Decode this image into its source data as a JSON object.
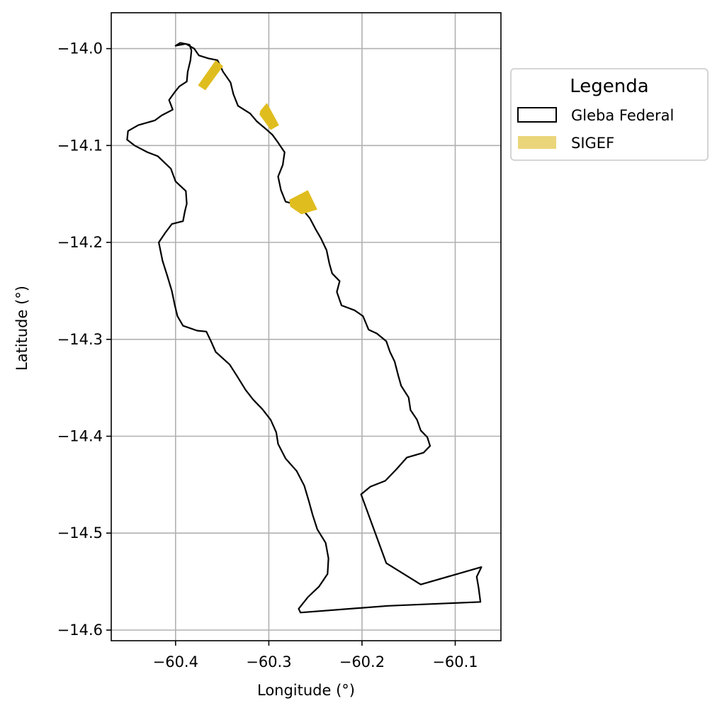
{
  "chart_data": {
    "type": "map",
    "xlabel": "Longitude (°)",
    "ylabel": "Latitude (°)",
    "xlim": [
      -60.469,
      -60.051
    ],
    "ylim": [
      -14.611,
      -13.963
    ],
    "xticks": [
      -60.4,
      -60.3,
      -60.2,
      -60.1
    ],
    "xtick_labels": [
      "−60.4",
      "−60.3",
      "−60.2",
      "−60.1"
    ],
    "yticks": [
      -14.0,
      -14.1,
      -14.2,
      -14.3,
      -14.4,
      -14.5,
      -14.6
    ],
    "ytick_labels": [
      "−14.0",
      "−14.1",
      "−14.2",
      "−14.3",
      "−14.4",
      "−14.5",
      "−14.6"
    ],
    "grid": true,
    "legend": {
      "title": "Legenda",
      "placement": "outside-right-top",
      "entries": [
        "Gleba Federal",
        "SIGEF"
      ]
    },
    "colors": {
      "outline": "#000000",
      "sigef": "#e0bd1f",
      "sigef_legend": "#ead57a",
      "grid": "#b0b0b0"
    },
    "layers": [
      {
        "name": "Gleba Federal",
        "kind": "polygon-outline",
        "coordinates": [
          [
            -60.4,
            -13.997
          ],
          [
            -60.395,
            -13.994
          ],
          [
            -60.385,
            -13.996
          ],
          [
            -60.383,
            -14.002
          ],
          [
            -60.384,
            -14.012
          ],
          [
            -60.387,
            -14.024
          ],
          [
            -60.388,
            -14.034
          ],
          [
            -60.396,
            -14.039
          ],
          [
            -60.401,
            -14.045
          ],
          [
            -60.407,
            -14.053
          ],
          [
            -60.403,
            -14.063
          ],
          [
            -60.415,
            -14.069
          ],
          [
            -60.422,
            -14.074
          ],
          [
            -60.44,
            -14.079
          ],
          [
            -60.451,
            -14.085
          ],
          [
            -60.452,
            -14.094
          ],
          [
            -60.444,
            -14.1
          ],
          [
            -60.43,
            -14.107
          ],
          [
            -60.419,
            -14.111
          ],
          [
            -60.405,
            -14.124
          ],
          [
            -60.4,
            -14.137
          ],
          [
            -60.389,
            -14.147
          ],
          [
            -60.388,
            -14.16
          ],
          [
            -60.39,
            -14.168
          ],
          [
            -60.392,
            -14.178
          ],
          [
            -60.404,
            -14.181
          ],
          [
            -60.411,
            -14.19
          ],
          [
            -60.418,
            -14.2
          ],
          [
            -60.414,
            -14.219
          ],
          [
            -60.409,
            -14.234
          ],
          [
            -60.404,
            -14.25
          ],
          [
            -60.401,
            -14.264
          ],
          [
            -60.398,
            -14.276
          ],
          [
            -60.392,
            -14.286
          ],
          [
            -60.377,
            -14.291
          ],
          [
            -60.367,
            -14.292
          ],
          [
            -60.362,
            -14.302
          ],
          [
            -60.357,
            -14.313
          ],
          [
            -60.342,
            -14.326
          ],
          [
            -60.334,
            -14.338
          ],
          [
            -60.325,
            -14.352
          ],
          [
            -60.317,
            -14.362
          ],
          [
            -60.307,
            -14.372
          ],
          [
            -60.298,
            -14.383
          ],
          [
            -60.292,
            -14.396
          ],
          [
            -60.29,
            -14.408
          ],
          [
            -60.282,
            -14.423
          ],
          [
            -60.27,
            -14.436
          ],
          [
            -60.262,
            -14.451
          ],
          [
            -60.257,
            -14.467
          ],
          [
            -60.253,
            -14.481
          ],
          [
            -60.248,
            -14.496
          ],
          [
            -60.239,
            -14.51
          ],
          [
            -60.236,
            -14.526
          ],
          [
            -60.237,
            -14.542
          ],
          [
            -60.246,
            -14.555
          ],
          [
            -60.258,
            -14.566
          ],
          [
            -60.268,
            -14.578
          ],
          [
            -60.266,
            -14.582
          ],
          [
            -60.172,
            -14.575
          ],
          [
            -60.073,
            -14.571
          ],
          [
            -60.075,
            -14.556
          ],
          [
            -60.077,
            -14.545
          ],
          [
            -60.072,
            -14.535
          ],
          [
            -60.137,
            -14.553
          ],
          [
            -60.174,
            -14.531
          ],
          [
            -60.201,
            -14.46
          ],
          [
            -60.191,
            -14.452
          ],
          [
            -60.175,
            -14.446
          ],
          [
            -60.163,
            -14.434
          ],
          [
            -60.152,
            -14.422
          ],
          [
            -60.134,
            -14.417
          ],
          [
            -60.127,
            -14.41
          ],
          [
            -60.13,
            -14.401
          ],
          [
            -60.137,
            -14.394
          ],
          [
            -60.141,
            -14.383
          ],
          [
            -60.148,
            -14.373
          ],
          [
            -60.15,
            -14.36
          ],
          [
            -60.158,
            -14.348
          ],
          [
            -60.161,
            -14.338
          ],
          [
            -60.165,
            -14.323
          ],
          [
            -60.17,
            -14.313
          ],
          [
            -60.174,
            -14.302
          ],
          [
            -60.184,
            -14.294
          ],
          [
            -60.193,
            -14.29
          ],
          [
            -60.199,
            -14.276
          ],
          [
            -60.208,
            -14.27
          ],
          [
            -60.222,
            -14.265
          ],
          [
            -60.227,
            -14.251
          ],
          [
            -60.224,
            -14.24
          ],
          [
            -60.232,
            -14.232
          ],
          [
            -60.235,
            -14.222
          ],
          [
            -60.238,
            -14.208
          ],
          [
            -60.244,
            -14.196
          ],
          [
            -60.25,
            -14.186
          ],
          [
            -60.256,
            -14.175
          ],
          [
            -60.262,
            -14.168
          ],
          [
            -60.27,
            -14.161
          ],
          [
            -60.282,
            -14.158
          ],
          [
            -60.287,
            -14.146
          ],
          [
            -60.29,
            -14.132
          ],
          [
            -60.285,
            -14.12
          ],
          [
            -60.283,
            -14.107
          ],
          [
            -60.29,
            -14.097
          ],
          [
            -60.296,
            -14.089
          ],
          [
            -60.303,
            -14.083
          ],
          [
            -60.313,
            -14.075
          ],
          [
            -60.32,
            -14.067
          ],
          [
            -60.333,
            -14.059
          ],
          [
            -60.338,
            -14.047
          ],
          [
            -60.341,
            -14.035
          ],
          [
            -60.349,
            -14.024
          ],
          [
            -60.355,
            -14.012
          ],
          [
            -60.365,
            -14.01
          ],
          [
            -60.375,
            -14.007
          ],
          [
            -60.38,
            -14.0
          ],
          [
            -60.389,
            -13.995
          ],
          [
            -60.4,
            -13.997
          ]
        ]
      },
      {
        "name": "SIGEF",
        "kind": "filled-polygons",
        "polygons": [
          [
            [
              -60.376,
              -14.038
            ],
            [
              -60.357,
              -14.012
            ],
            [
              -60.349,
              -14.018
            ],
            [
              -60.368,
              -14.043
            ]
          ],
          [
            [
              -60.309,
              -14.064
            ],
            [
              -60.302,
              -14.056
            ],
            [
              -60.289,
              -14.079
            ],
            [
              -60.298,
              -14.084
            ],
            [
              -60.31,
              -14.068
            ]
          ],
          [
            [
              -60.278,
              -14.156
            ],
            [
              -60.258,
              -14.146
            ],
            [
              -60.248,
              -14.166
            ],
            [
              -60.265,
              -14.171
            ],
            [
              -60.277,
              -14.163
            ]
          ]
        ]
      }
    ]
  }
}
